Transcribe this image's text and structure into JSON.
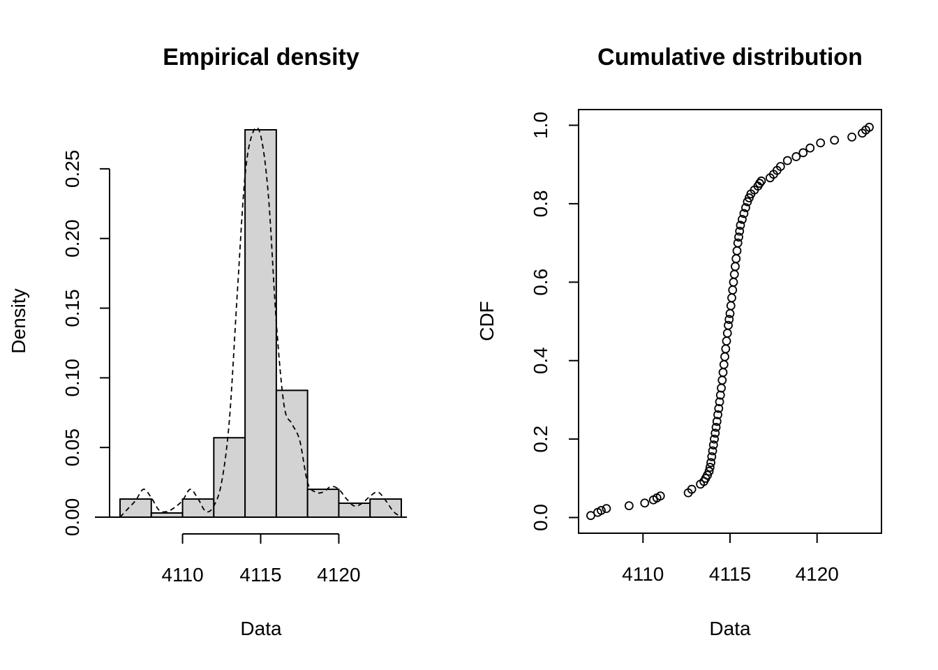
{
  "chart_data": [
    {
      "type": "bar",
      "title": "Empirical density",
      "xlabel": "Data",
      "ylabel": "Density",
      "bin_edges": [
        4106,
        4108,
        4110,
        4112,
        4114,
        4116,
        4118,
        4120,
        4122,
        4124
      ],
      "values": [
        0.013,
        0.003,
        0.013,
        0.057,
        0.278,
        0.091,
        0.02,
        0.01,
        0.013
      ],
      "density_curve": {
        "x": [
          4106.0,
          4106.5,
          4107.0,
          4107.5,
          4108.0,
          4108.5,
          4109.0,
          4109.5,
          4110.0,
          4110.5,
          4111.0,
          4111.5,
          4112.0,
          4112.5,
          4113.0,
          4113.5,
          4114.0,
          4114.5,
          4115.0,
          4115.5,
          4116.0,
          4116.5,
          4117.0,
          4117.5,
          4118.0,
          4118.5,
          4119.0,
          4119.5,
          4120.0,
          4120.5,
          4121.0,
          4121.5,
          4122.0,
          4122.5,
          4123.0,
          4123.5,
          4124.0
        ],
        "y": [
          0.0,
          0.006,
          0.012,
          0.02,
          0.014,
          0.005,
          0.004,
          0.007,
          0.012,
          0.02,
          0.013,
          0.004,
          0.008,
          0.025,
          0.07,
          0.16,
          0.245,
          0.276,
          0.274,
          0.23,
          0.14,
          0.08,
          0.067,
          0.055,
          0.025,
          0.018,
          0.018,
          0.022,
          0.02,
          0.013,
          0.008,
          0.01,
          0.015,
          0.018,
          0.012,
          0.004,
          0.0
        ]
      },
      "xticks": [
        4110,
        4115,
        4120
      ],
      "xtick_labels": [
        "4110",
        "4115",
        "4120"
      ],
      "yticks": [
        0.0,
        0.05,
        0.1,
        0.15,
        0.2,
        0.25
      ],
      "ytick_labels": [
        "0.00",
        "0.05",
        "0.10",
        "0.15",
        "0.20",
        "0.25"
      ],
      "xlim": [
        4106,
        4124
      ],
      "ylim": [
        0,
        0.28
      ],
      "grid": false
    },
    {
      "type": "scatter",
      "title": "Cumulative distribution",
      "xlabel": "Data",
      "ylabel": "CDF",
      "points": {
        "x": [
          4107.0,
          4107.4,
          4107.6,
          4107.9,
          4109.2,
          4110.1,
          4110.6,
          4110.8,
          4111.0,
          4112.6,
          4112.8,
          4113.3,
          4113.5,
          4113.6,
          4113.7,
          4113.8,
          4113.85,
          4113.9,
          4113.95,
          4114.0,
          4114.05,
          4114.1,
          4114.15,
          4114.2,
          4114.25,
          4114.3,
          4114.35,
          4114.4,
          4114.45,
          4114.5,
          4114.55,
          4114.6,
          4114.65,
          4114.7,
          4114.75,
          4114.8,
          4114.85,
          4114.9,
          4114.95,
          4115.0,
          4115.05,
          4115.1,
          4115.15,
          4115.2,
          4115.25,
          4115.3,
          4115.35,
          4115.4,
          4115.45,
          4115.5,
          4115.55,
          4115.6,
          4115.7,
          4115.8,
          4115.9,
          4116.0,
          4116.1,
          4116.2,
          4116.4,
          4116.6,
          4116.7,
          4116.8,
          4117.3,
          4117.5,
          4117.7,
          4117.9,
          4118.3,
          4118.8,
          4119.2,
          4119.6,
          4120.2,
          4121.0,
          4122.0,
          4122.6,
          4122.8,
          4123.0
        ],
        "y": [
          0.005,
          0.013,
          0.018,
          0.023,
          0.03,
          0.037,
          0.045,
          0.05,
          0.055,
          0.063,
          0.072,
          0.085,
          0.092,
          0.1,
          0.108,
          0.118,
          0.128,
          0.14,
          0.155,
          0.17,
          0.185,
          0.2,
          0.215,
          0.23,
          0.245,
          0.262,
          0.278,
          0.295,
          0.312,
          0.33,
          0.35,
          0.37,
          0.39,
          0.41,
          0.43,
          0.45,
          0.47,
          0.49,
          0.505,
          0.52,
          0.54,
          0.56,
          0.58,
          0.6,
          0.62,
          0.64,
          0.66,
          0.68,
          0.7,
          0.715,
          0.73,
          0.745,
          0.76,
          0.775,
          0.79,
          0.805,
          0.815,
          0.825,
          0.835,
          0.845,
          0.852,
          0.858,
          0.866,
          0.875,
          0.885,
          0.895,
          0.91,
          0.92,
          0.93,
          0.942,
          0.955,
          0.962,
          0.97,
          0.98,
          0.988,
          0.995
        ]
      },
      "xticks": [
        4110,
        4115,
        4120
      ],
      "xtick_labels": [
        "4110",
        "4115",
        "4120"
      ],
      "yticks": [
        0.0,
        0.2,
        0.4,
        0.6,
        0.8,
        1.0
      ],
      "ytick_labels": [
        "0.0",
        "0.2",
        "0.4",
        "0.6",
        "0.8",
        "1.0"
      ],
      "xlim": [
        4106.3,
        4123.7
      ],
      "ylim": [
        -0.04,
        1.04
      ],
      "grid": false
    }
  ]
}
